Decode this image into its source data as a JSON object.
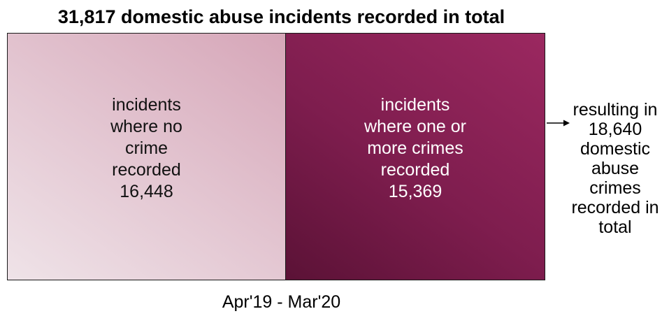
{
  "title": "31,817 domestic abuse incidents recorded in total",
  "left_box": {
    "lines": [
      "incidents",
      "where no",
      "crime",
      "recorded",
      "16,448"
    ]
  },
  "right_box": {
    "lines": [
      "incidents",
      "where one or",
      "more crimes",
      "recorded",
      "15,369"
    ]
  },
  "side_note": {
    "lines": [
      "resulting in",
      "18,640",
      "domestic",
      "abuse",
      "crimes",
      "recorded in",
      "total"
    ]
  },
  "period_label": "Apr'19 - Mar'20",
  "colors": {
    "left_box": "#e4c8d3",
    "right_box": "#7e1d4e",
    "right_text": "#ffffff",
    "border": "#1a1a1a"
  },
  "icons": {
    "arrow": "arrow-right-icon"
  }
}
